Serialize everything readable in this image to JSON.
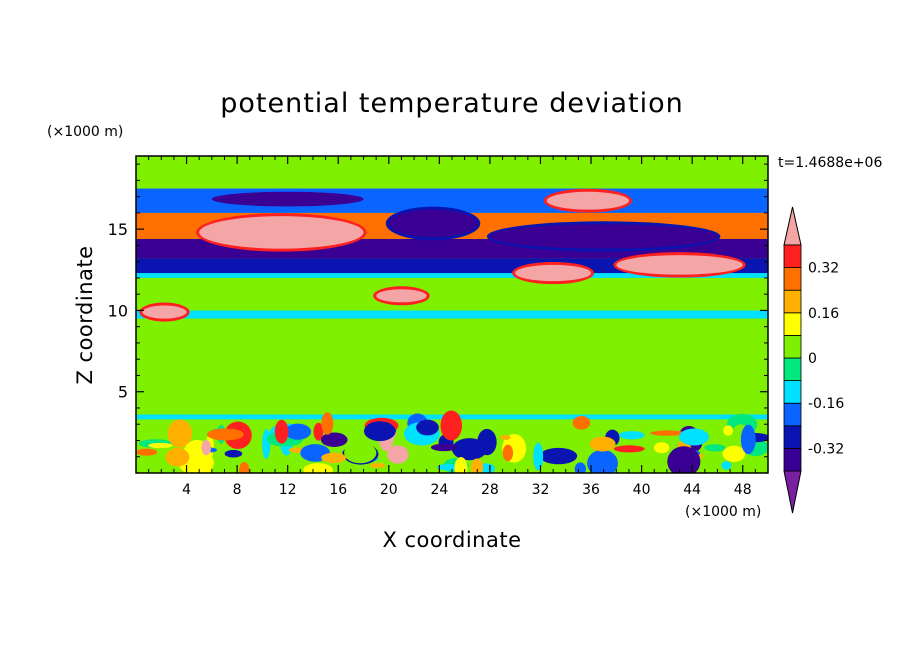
{
  "chart_data": {
    "type": "heatmap",
    "title": "potential temperature deviation",
    "xlabel": "X coordinate",
    "ylabel": "Z coordinate",
    "x_unit": "(×1000 m)",
    "y_unit": "(×1000 m)",
    "time_label": "t=1.4688e+06",
    "xlim": [
      0,
      50
    ],
    "ylim": [
      0,
      19.5
    ],
    "x_ticks": [
      4,
      8,
      12,
      16,
      20,
      24,
      28,
      32,
      36,
      40,
      44,
      48
    ],
    "y_ticks": [
      5,
      10,
      15
    ],
    "colorbar": {
      "levels": [
        -0.4,
        -0.32,
        -0.24,
        -0.16,
        -0.08,
        0,
        0.08,
        0.16,
        0.24,
        0.32,
        0.4
      ],
      "tick_labels": [
        "-0.32",
        "-0.16",
        "0",
        "0.16",
        "0.32"
      ],
      "tick_values": [
        -0.32,
        -0.16,
        0,
        0.16,
        0.32
      ],
      "colors": [
        "#7b1fa2",
        "#3a0094",
        "#0a14b0",
        "#0a64ff",
        "#00e0ff",
        "#00e87e",
        "#7ff000",
        "#ffff00",
        "#ffb000",
        "#ff7000",
        "#ff2020",
        "#f4a6a6"
      ],
      "extend": "both"
    },
    "background_value": 0.04,
    "bands": [
      {
        "z": [
          0,
          3.3
        ],
        "value": 0.04,
        "note": "turbulent boundary layer"
      },
      {
        "z": [
          3.3,
          3.6
        ],
        "value": -0.12
      },
      {
        "z": [
          3.6,
          9.5
        ],
        "value": 0.0
      },
      {
        "z": [
          9.5,
          10.0
        ],
        "value": -0.12
      },
      {
        "z": [
          10.0,
          12.0
        ],
        "value": 0.0
      },
      {
        "z": [
          12.0,
          12.3
        ],
        "value": -0.12
      },
      {
        "z": [
          12.3,
          13.2
        ],
        "value": -0.26
      },
      {
        "z": [
          13.2,
          14.4
        ],
        "value": -0.36
      },
      {
        "z": [
          14.4,
          16.0
        ],
        "value": 0.3
      },
      {
        "z": [
          16.0,
          17.5
        ],
        "value": -0.2
      },
      {
        "z": [
          17.5,
          19.5
        ],
        "value": 0.04
      }
    ],
    "features": [
      {
        "x": [
          5,
          18
        ],
        "z": [
          13.8,
          15.8
        ],
        "value": 0.45
      },
      {
        "x": [
          32.5,
          39
        ],
        "z": [
          16.2,
          17.3
        ],
        "value": 0.45
      },
      {
        "x": [
          38,
          48
        ],
        "z": [
          12.2,
          13.4
        ],
        "value": 0.45
      },
      {
        "x": [
          30,
          36
        ],
        "z": [
          11.8,
          12.8
        ],
        "value": 0.45
      },
      {
        "x": [
          20,
          27
        ],
        "z": [
          14.5,
          16.2
        ],
        "value": -0.4
      },
      {
        "x": [
          28,
          46
        ],
        "z": [
          13.8,
          15.3
        ],
        "value": -0.4
      },
      {
        "x": [
          6,
          18
        ],
        "z": [
          16.4,
          17.3
        ],
        "value": -0.36
      },
      {
        "x": [
          0.5,
          4
        ],
        "z": [
          9.5,
          10.3
        ],
        "value": 0.45
      },
      {
        "x": [
          19,
          23
        ],
        "z": [
          10.5,
          11.3
        ],
        "value": 0.45
      }
    ]
  }
}
